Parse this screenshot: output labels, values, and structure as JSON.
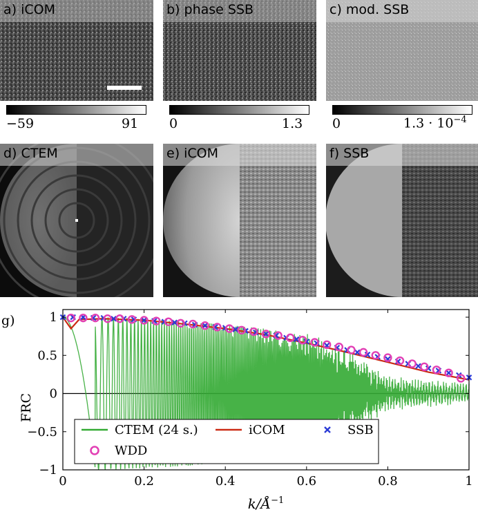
{
  "panels": {
    "a": {
      "label": "a) iCOM",
      "cbar_min": "−59",
      "cbar_max": "91"
    },
    "b": {
      "label": "b) phase SSB",
      "cbar_min": "0",
      "cbar_max": "1.3"
    },
    "c": {
      "label": "c) mod. SSB",
      "cbar_min": "0",
      "cbar_max": "1.3 · 10",
      "cbar_max_exp": "−4"
    },
    "d": {
      "label": "d) CTEM"
    },
    "e": {
      "label": "e) iCOM"
    },
    "f": {
      "label": "f) SSB"
    }
  },
  "frc_panel_label": "g)",
  "chart_data": {
    "type": "line",
    "xlabel": "k/Å",
    "xlabel_exp": "−1",
    "ylabel": "FRC",
    "xlim": [
      0,
      1
    ],
    "ylim": [
      -1,
      1.1
    ],
    "xticks": [
      "0",
      "0.2",
      "0.4",
      "0.6",
      "0.8",
      "1"
    ],
    "yticks": [
      "−1",
      "−0.5",
      "0",
      "0.5",
      "1"
    ],
    "legend_position": "bottom-left",
    "series": [
      {
        "name": "CTEM (24 s.)",
        "color": "#33aa33",
        "envelope_x": [
          0,
          0.1,
          0.2,
          0.3,
          0.4,
          0.5,
          0.6,
          0.7,
          0.8,
          0.9,
          1.0
        ],
        "envelope_y": [
          1.0,
          1.0,
          0.98,
          0.95,
          0.9,
          0.85,
          0.75,
          0.5,
          0.15,
          0.1,
          0.05
        ]
      },
      {
        "name": "iCOM",
        "color": "#cc2a14",
        "x": [
          0,
          0.02,
          0.04,
          0.1,
          0.2,
          0.3,
          0.4,
          0.5,
          0.6,
          0.7,
          0.8,
          0.9,
          1.0
        ],
        "y": [
          1.0,
          0.85,
          0.97,
          0.98,
          0.96,
          0.91,
          0.85,
          0.77,
          0.66,
          0.54,
          0.41,
          0.28,
          0.18
        ]
      },
      {
        "name": "SSB",
        "color": "#2b3bd6",
        "x": [
          0,
          0.025,
          0.05,
          0.075,
          0.1,
          0.125,
          0.15,
          0.175,
          0.2,
          0.225,
          0.25,
          0.275,
          0.3,
          0.325,
          0.35,
          0.375,
          0.4,
          0.425,
          0.45,
          0.475,
          0.5,
          0.525,
          0.55,
          0.575,
          0.6,
          0.625,
          0.65,
          0.675,
          0.7,
          0.725,
          0.75,
          0.775,
          0.8,
          0.825,
          0.85,
          0.875,
          0.9,
          0.925,
          0.95,
          0.975,
          1.0
        ],
        "y": [
          1.0,
          1.0,
          1.0,
          0.99,
          0.99,
          0.98,
          0.98,
          0.97,
          0.96,
          0.95,
          0.94,
          0.93,
          0.92,
          0.9,
          0.89,
          0.87,
          0.86,
          0.84,
          0.82,
          0.8,
          0.78,
          0.76,
          0.73,
          0.71,
          0.68,
          0.66,
          0.63,
          0.6,
          0.57,
          0.54,
          0.51,
          0.48,
          0.45,
          0.42,
          0.39,
          0.36,
          0.33,
          0.3,
          0.27,
          0.24,
          0.21
        ]
      },
      {
        "name": "WDD",
        "color": "#e23fb4",
        "x": [
          0.02,
          0.05,
          0.08,
          0.11,
          0.14,
          0.17,
          0.2,
          0.23,
          0.26,
          0.29,
          0.32,
          0.35,
          0.38,
          0.41,
          0.44,
          0.47,
          0.5,
          0.53,
          0.56,
          0.59,
          0.62,
          0.65,
          0.68,
          0.71,
          0.74,
          0.77,
          0.8,
          0.83,
          0.86,
          0.89,
          0.92,
          0.95,
          0.98
        ],
        "y": [
          0.99,
          0.99,
          0.99,
          0.98,
          0.98,
          0.97,
          0.96,
          0.95,
          0.94,
          0.92,
          0.91,
          0.89,
          0.87,
          0.85,
          0.83,
          0.81,
          0.78,
          0.76,
          0.73,
          0.7,
          0.67,
          0.64,
          0.61,
          0.57,
          0.54,
          0.5,
          0.47,
          0.43,
          0.39,
          0.35,
          0.31,
          0.27,
          0.2
        ]
      }
    ]
  }
}
